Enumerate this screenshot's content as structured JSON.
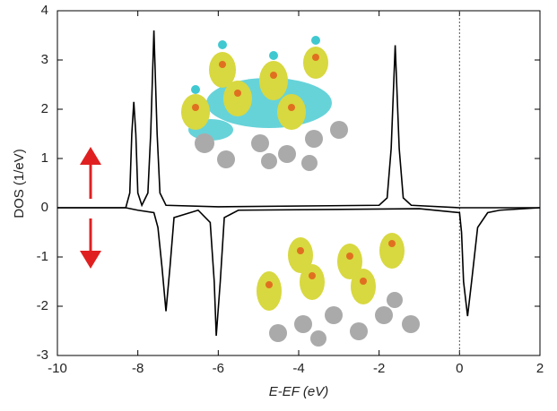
{
  "chart_data": {
    "type": "line",
    "x_label": "E-EF (eV)",
    "y_label": "DOS (1/eV)",
    "xlim": [
      -10,
      2
    ],
    "xticks": [
      -10,
      -8,
      -6,
      -4,
      -2,
      0,
      2
    ],
    "ylim": [
      -3,
      4
    ],
    "yticks": [
      -3,
      -2,
      -1,
      0,
      1,
      2,
      3,
      4
    ],
    "fermi_line_x": 0,
    "series": [
      {
        "color": "#000000",
        "x": [
          -10,
          -8.3,
          -8.2,
          -8.15,
          -8.1,
          -8.05,
          -8.0,
          -7.9,
          -7.75,
          -7.68,
          -7.6,
          -7.52,
          -7.45,
          -7.3,
          -6,
          -2,
          -1.8,
          -1.7,
          -1.6,
          -1.5,
          -1.4,
          -1.2,
          0,
          2
        ],
        "values": [
          0,
          0,
          0.3,
          1.5,
          2.15,
          1.5,
          0.3,
          0.05,
          0.3,
          1.5,
          3.6,
          1.5,
          0.3,
          0.05,
          0.02,
          0.05,
          0.2,
          1.2,
          3.3,
          1.2,
          0.2,
          0.05,
          0,
          0
        ]
      },
      {
        "color": "#000000",
        "x": [
          -10,
          -8.3,
          -8.0,
          -7.6,
          -7.5,
          -7.4,
          -7.3,
          -7.2,
          -7.1,
          -6.5,
          -6.2,
          -6.1,
          -6.05,
          -5.95,
          -5.85,
          -5.5,
          -1,
          0,
          0.05,
          0.1,
          0.2,
          0.3,
          0.45,
          0.7,
          1,
          2
        ],
        "values": [
          0,
          0,
          -0.05,
          -0.1,
          -0.4,
          -1.2,
          -2.1,
          -1.2,
          -0.2,
          -0.05,
          -0.3,
          -1.5,
          -2.6,
          -1.5,
          -0.2,
          -0.05,
          -0.02,
          -0.1,
          -0.5,
          -1.5,
          -2.2,
          -1.5,
          -0.4,
          -0.1,
          -0.05,
          0
        ]
      }
    ]
  }
}
